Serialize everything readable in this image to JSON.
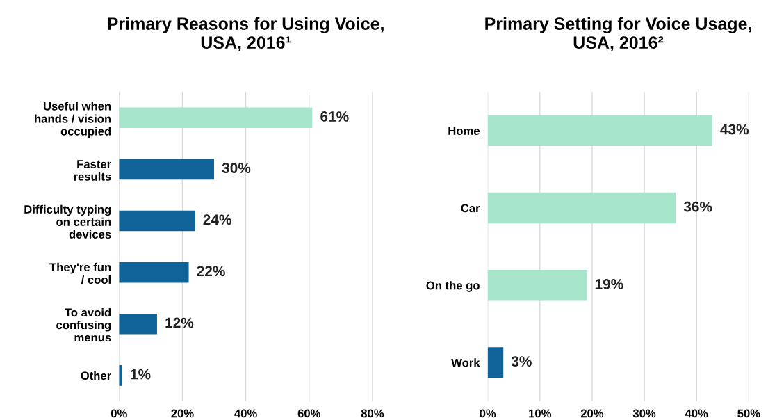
{
  "chart_data": [
    {
      "type": "bar",
      "orientation": "horizontal",
      "title": "Primary Reasons for Using Voice,\nUSA, 2016¹",
      "categories": [
        "Useful when\nhands / vision\noccupied",
        "Faster\nresults",
        "Difficulty typing\non certain\ndevices",
        "They're fun\n/ cool",
        "To avoid\nconfusing\nmenus",
        "Other"
      ],
      "values": [
        61,
        30,
        24,
        22,
        12,
        1
      ],
      "colors": [
        "#a8e6cc",
        "#0f6399",
        "#0f6399",
        "#0f6399",
        "#0f6399",
        "#0f6399"
      ],
      "value_labels": [
        "61%",
        "30%",
        "24%",
        "22%",
        "12%",
        "1%"
      ],
      "xlim": [
        0,
        80
      ],
      "xticks": [
        {
          "value": 0,
          "label": "0%"
        },
        {
          "value": 20,
          "label": "20%"
        },
        {
          "value": 40,
          "label": "40%"
        },
        {
          "value": 60,
          "label": "60%"
        },
        {
          "value": 80,
          "label": "80%"
        }
      ],
      "grid": "x",
      "legend": false
    },
    {
      "type": "bar",
      "orientation": "horizontal",
      "title": "Primary Setting for Voice Usage,\nUSA, 2016²",
      "categories": [
        "Home",
        "Car",
        "On the go",
        "Work"
      ],
      "values": [
        43,
        36,
        19,
        3
      ],
      "colors": [
        "#a8e6cc",
        "#a8e6cc",
        "#a8e6cc",
        "#0f6399"
      ],
      "value_labels": [
        "43%",
        "36%",
        "19%",
        "3%"
      ],
      "xlim": [
        0,
        50
      ],
      "xticks": [
        {
          "value": 0,
          "label": "0%"
        },
        {
          "value": 10,
          "label": "10%"
        },
        {
          "value": 20,
          "label": "20%"
        },
        {
          "value": 30,
          "label": "30%"
        },
        {
          "value": 40,
          "label": "40%"
        },
        {
          "value": 50,
          "label": "50%"
        }
      ],
      "grid": "x",
      "legend": false
    }
  ]
}
